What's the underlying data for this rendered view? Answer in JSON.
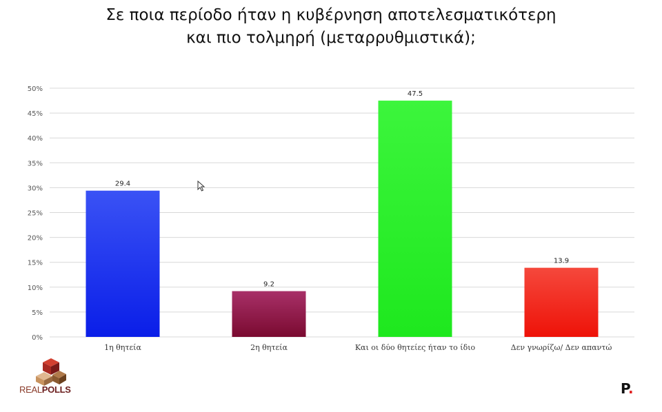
{
  "title_line1": "Σε ποια περίοδο ήταν η κυβέρνηση αποτελεσματικότερη",
  "title_line2": "και πιο τολμηρή (μεταρρυθμιστικά);",
  "chart_data": {
    "type": "bar",
    "title": "Σε ποια περίοδο ήταν η κυβέρνηση αποτελεσματικότερη και πιο τολμηρή (μεταρρυθμιστικά);",
    "categories": [
      "1η θητεία",
      "2η θητεία",
      "Και οι δύο θητείες ήταν το ίδιο",
      "Δεν γνωρίζω/ Δεν απαντώ"
    ],
    "values": [
      29.4,
      9.2,
      47.5,
      13.9
    ],
    "data_labels": [
      "29.4",
      "9.2",
      "47.5",
      "13.9"
    ],
    "colors": [
      "#1a2ff0",
      "#8c1040",
      "#22ee22",
      "#f01a10"
    ],
    "yticks": [
      "0%",
      "5%",
      "10%",
      "15%",
      "20%",
      "25%",
      "30%",
      "35%",
      "40%",
      "45%",
      "50%"
    ],
    "ylim": [
      0,
      50
    ],
    "grid": true,
    "xlabel": "",
    "ylabel": ""
  },
  "logo": {
    "text_real": "REAL",
    "text_polls": "POLLS"
  },
  "brand": {
    "letter": "P",
    "dot": "."
  }
}
